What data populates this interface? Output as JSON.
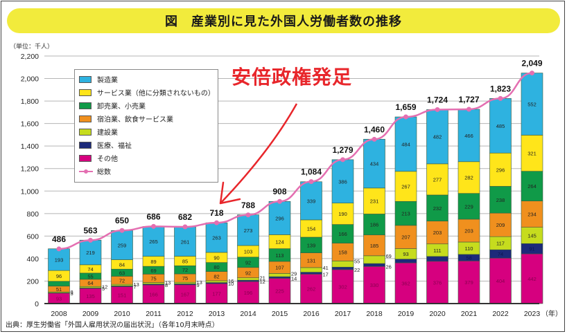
{
  "title": "図　産業別に見た外国人労働者数の推移",
  "unit_label": "（単位：千人）",
  "source": "出典：厚生労働省「外国人雇用状況の届出状況」（各年10月末時点）",
  "annotation": "安倍政権発足",
  "chart_data": {
    "type": "bar",
    "stacked": true,
    "title": "産業別に見た外国人労働者数の推移",
    "xlabel": "（年）",
    "ylabel": "（単位：千人）",
    "ylim": [
      0,
      2200
    ],
    "yticks": [
      0,
      200,
      400,
      600,
      800,
      1000,
      1200,
      1400,
      1600,
      1800,
      2000,
      2200
    ],
    "ytick_labels": [
      "0",
      "200",
      "400",
      "600",
      "800",
      "1,000",
      "1,200",
      "1,400",
      "1,600",
      "1,800",
      "2,000",
      "2,200"
    ],
    "grid": true,
    "legend_position": "top-left",
    "categories": [
      "2008",
      "2009",
      "2010",
      "2011",
      "2012",
      "2013",
      "2014",
      "2015",
      "2016",
      "2017",
      "2018",
      "2019",
      "2020",
      "2021",
      "2022",
      "2023"
    ],
    "series": [
      {
        "name": "その他",
        "color": "#d6007f",
        "values": [
          93,
          135,
          151,
          166,
          167,
          177,
          196,
          225,
          262,
          302,
          330,
          362,
          376,
          379,
          404,
          442
        ]
      },
      {
        "name": "医療、福祉",
        "color": "#1d2a7a",
        "values": [
          3,
          5,
          7,
          8,
          9,
          10,
          12,
          14,
          17,
          22,
          26,
          33,
          43,
          58,
          74,
          91
        ]
      },
      {
        "name": "建設業",
        "color": "#c6dc1e",
        "values": [
          8,
          12,
          13,
          13,
          13,
          16,
          21,
          29,
          41,
          55,
          69,
          93,
          111,
          110,
          117,
          145
        ]
      },
      {
        "name": "宿泊業、飲食サービス業",
        "color": "#f0901e",
        "values": [
          51,
          64,
          72,
          75,
          75,
          82,
          92,
          107,
          131,
          158,
          185,
          207,
          203,
          203,
          209,
          234
        ]
      },
      {
        "name": "卸売業、小売業",
        "color": "#109a48",
        "values": [
          43,
          55,
          63,
          69,
          72,
          80,
          92,
          113,
          139,
          166,
          186,
          213,
          232,
          229,
          238,
          264
        ]
      },
      {
        "name": "サービス業（他に分類されないもの）",
        "color": "#ffe51a",
        "values": [
          96,
          74,
          84,
          89,
          85,
          90,
          103,
          124,
          154,
          190,
          231,
          267,
          277,
          282,
          296,
          321
        ]
      },
      {
        "name": "製造業",
        "color": "#2eb2e0",
        "values": [
          193,
          219,
          259,
          265,
          261,
          263,
          273,
          296,
          339,
          386,
          434,
          484,
          482,
          466,
          485,
          552
        ]
      }
    ],
    "outside_labels_series": [
      "医療、福祉",
      "建設業"
    ],
    "outside_labels_years": [
      "2008",
      "2009",
      "2010",
      "2011",
      "2012",
      "2013",
      "2014",
      "2015",
      "2016",
      "2017",
      "2018"
    ],
    "total": {
      "name": "総数",
      "color": "#e46fb1",
      "values": [
        486,
        563,
        650,
        686,
        682,
        718,
        788,
        908,
        1084,
        1279,
        1460,
        1659,
        1724,
        1727,
        1823,
        2049
      ],
      "labels": [
        "486",
        "563",
        "650",
        "686",
        "682",
        "718",
        "788",
        "908",
        "1,084",
        "1,279",
        "1,460",
        "1,659",
        "1,724",
        "1,727",
        "1,823",
        "2,049"
      ]
    }
  },
  "legend": {
    "items": [
      {
        "label": "製造業",
        "color": "#2eb2e0"
      },
      {
        "label": "サービス業（他に分類されないもの）",
        "color": "#ffe51a"
      },
      {
        "label": "卸売業、小売業",
        "color": "#109a48"
      },
      {
        "label": "宿泊業、飲食サービス業",
        "color": "#f0901e"
      },
      {
        "label": "建設業",
        "color": "#c6dc1e"
      },
      {
        "label": "医療、福祉",
        "color": "#1d2a7a"
      },
      {
        "label": "その他",
        "color": "#d6007f"
      }
    ],
    "total_label": "総数"
  }
}
